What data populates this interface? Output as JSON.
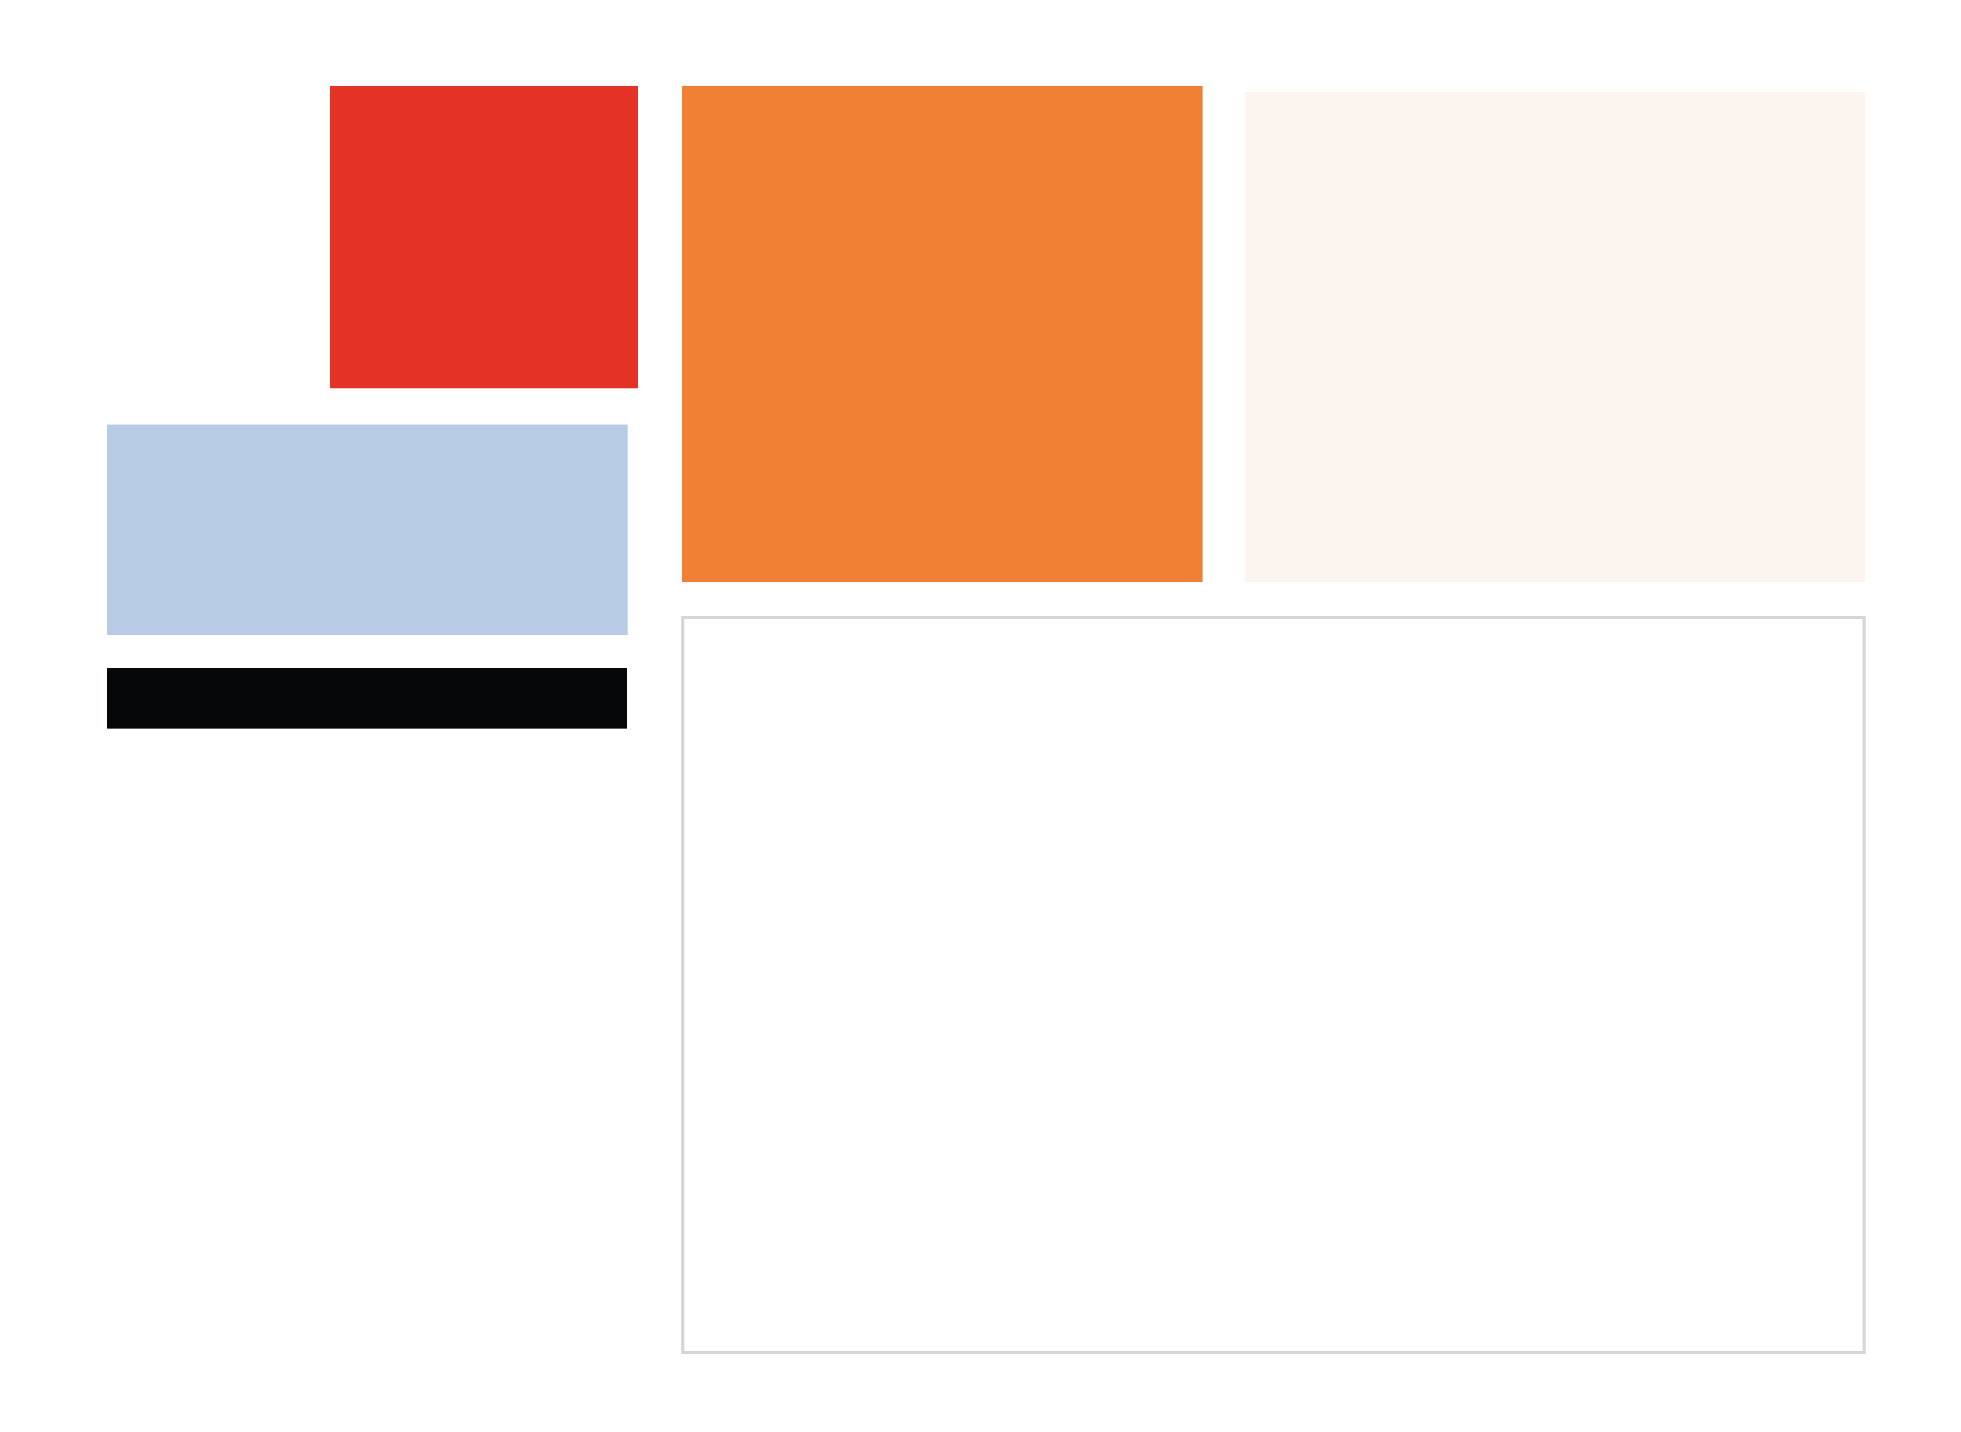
{
  "blocks": {
    "red": {
      "color": "#E53226"
    },
    "orange": {
      "color": "#F08034"
    },
    "cream": {
      "color": "#FCF4EE"
    },
    "light_blue": {
      "color": "#B7CBE5"
    },
    "black": {
      "color": "#060709"
    },
    "frame": {
      "border_color": "#D6D6D6"
    }
  }
}
